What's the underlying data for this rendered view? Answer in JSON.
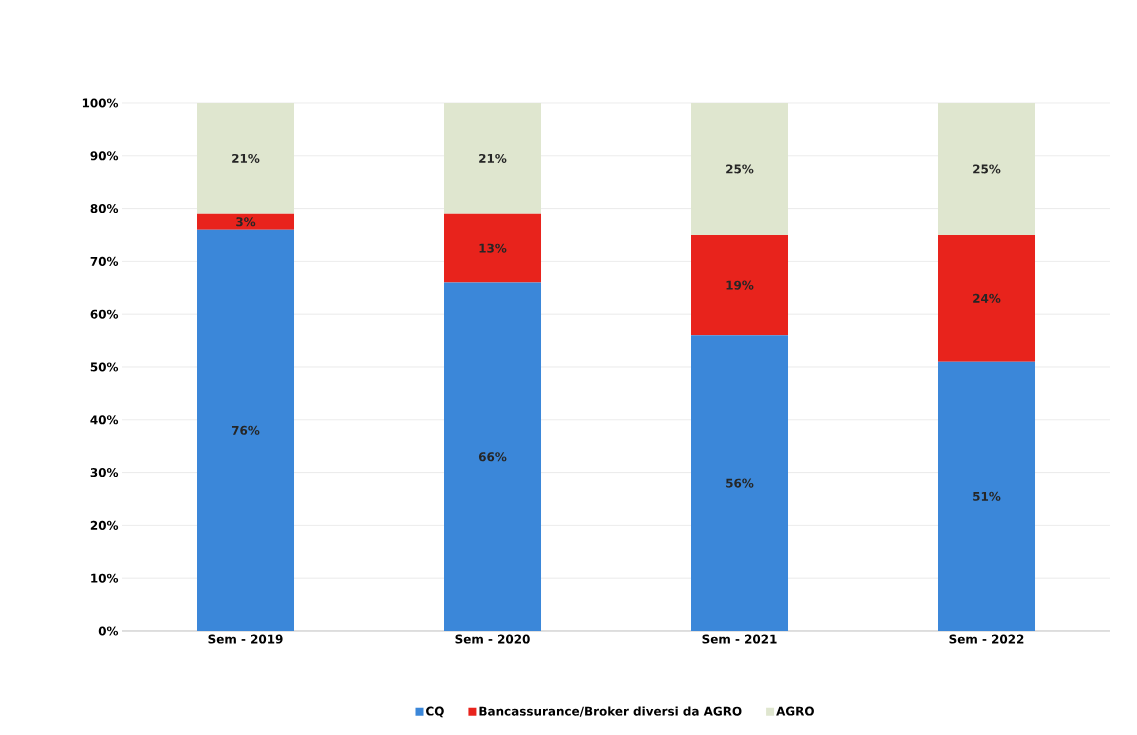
{
  "chart_data": {
    "type": "bar",
    "stacked": true,
    "categories": [
      "Sem - 2019",
      "Sem - 2020",
      "Sem - 2021",
      "Sem - 2022"
    ],
    "series": [
      {
        "name": "CQ",
        "color": "#3b87d9",
        "values": [
          76,
          66,
          56,
          51
        ],
        "value_labels": [
          "76%",
          "66%",
          "56%",
          "51%"
        ]
      },
      {
        "name": "Bancassurance/Broker diversi da AGRO",
        "color": "#e8231c",
        "values": [
          3,
          13,
          19,
          24
        ],
        "value_labels": [
          "3%",
          "13%",
          "19%",
          "24%"
        ]
      },
      {
        "name": "AGRO",
        "color": "#dfe6cf",
        "values": [
          21,
          21,
          25,
          25
        ],
        "value_labels": [
          "21%",
          "21%",
          "25%",
          "25%"
        ]
      }
    ],
    "ylim": [
      0,
      100
    ],
    "yticks": [
      {
        "value": 0,
        "label": "0%"
      },
      {
        "value": 10,
        "label": "10%"
      },
      {
        "value": 20,
        "label": "20%"
      },
      {
        "value": 30,
        "label": "30%"
      },
      {
        "value": 40,
        "label": "40%"
      },
      {
        "value": 50,
        "label": "50%"
      },
      {
        "value": 60,
        "label": "60%"
      },
      {
        "value": 70,
        "label": "70%"
      },
      {
        "value": 80,
        "label": "80%"
      },
      {
        "value": 90,
        "label": "90%"
      },
      {
        "value": 100,
        "label": "100%"
      }
    ],
    "grid": "y",
    "legend": "bottom"
  }
}
